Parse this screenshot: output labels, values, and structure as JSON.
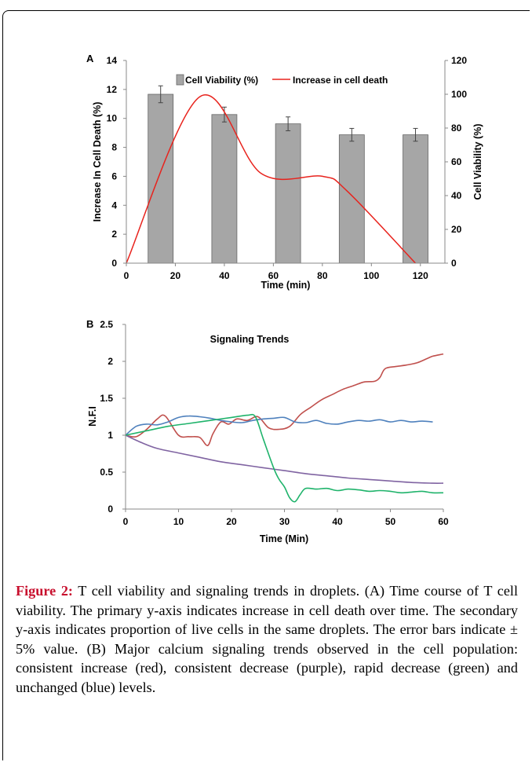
{
  "charts": [
    {
      "panel_label": "A",
      "chart_data": {
        "type": "bar",
        "xlabel": "Time (min)",
        "ylabel": "Increase In Cell Death (%)",
        "y2label": "Cell Viability (%)",
        "xlim": [
          0,
          130
        ],
        "ylim": [
          0,
          14
        ],
        "y2lim": [
          0,
          120
        ],
        "x_ticks": [
          0,
          20,
          40,
          60,
          80,
          100,
          120
        ],
        "y_ticks": [
          0,
          2,
          4,
          6,
          8,
          10,
          12,
          14
        ],
        "y2_ticks": [
          0,
          20,
          40,
          60,
          80,
          100,
          120
        ],
        "legend": {
          "position": "top"
        },
        "series": [
          {
            "name": "Cell Viability (%)",
            "kind": "bar",
            "axis": "y2",
            "color": "#a6a6a6",
            "x": [
              14,
              40,
              66,
              92,
              118
            ],
            "values": [
              100,
              88,
              82.5,
              76,
              76
            ],
            "error": [
              5,
              4.4,
              4.1,
              3.8,
              3.8
            ]
          },
          {
            "name": "Increase in cell death",
            "kind": "line",
            "axis": "y",
            "color": "#e8231d",
            "x": [
              0,
              30,
              55,
              80,
              90,
              118
            ],
            "values": [
              0,
              11.5,
              6.2,
              6,
              5,
              0
            ]
          }
        ]
      }
    },
    {
      "panel_label": "B",
      "chart_data": {
        "type": "line",
        "title": "Signaling Trends",
        "xlabel": "Time (Min)",
        "ylabel": "N.F.I",
        "xlim": [
          0,
          60
        ],
        "ylim": [
          0,
          2.5
        ],
        "x_ticks": [
          0,
          10,
          20,
          30,
          40,
          50,
          60
        ],
        "y_ticks": [
          0,
          0.5,
          1,
          1.5,
          2,
          2.5
        ],
        "y_tick_labels": [
          "0",
          "0.5",
          "1",
          "1.5",
          "2",
          "2.5"
        ],
        "series": [
          {
            "color": "#c0504d",
            "x": [
              0,
              2,
              4,
              6,
              7.5,
              10,
              12,
              14,
              15.5,
              16.5,
              18,
              19.5,
              21,
              23,
              25,
              27,
              29,
              31,
              33,
              35,
              37,
              39,
              41,
              43,
              45,
              47,
              48,
              49,
              51,
              53,
              55,
              57,
              58,
              60
            ],
            "values": [
              1,
              0.98,
              1.08,
              1.22,
              1.26,
              1.0,
              0.98,
              0.97,
              0.86,
              1.02,
              1.18,
              1.15,
              1.22,
              1.2,
              1.25,
              1.1,
              1.08,
              1.12,
              1.28,
              1.38,
              1.48,
              1.55,
              1.62,
              1.67,
              1.72,
              1.73,
              1.78,
              1.9,
              1.93,
              1.95,
              1.98,
              2.04,
              2.07,
              2.1
            ]
          },
          {
            "color": "#4f81bd",
            "x": [
              0,
              2,
              4,
              6,
              8,
              10,
              12,
              14,
              16,
              18,
              20,
              22,
              24,
              26,
              28,
              30,
              32,
              34,
              36,
              38,
              40,
              42,
              44,
              46,
              48,
              50,
              52,
              54,
              56,
              58
            ],
            "values": [
              1,
              1.12,
              1.15,
              1.14,
              1.18,
              1.24,
              1.26,
              1.25,
              1.23,
              1.2,
              1.18,
              1.17,
              1.2,
              1.22,
              1.23,
              1.24,
              1.18,
              1.17,
              1.2,
              1.16,
              1.15,
              1.18,
              1.2,
              1.19,
              1.21,
              1.18,
              1.2,
              1.18,
              1.19,
              1.18
            ]
          },
          {
            "color": "#8064a2",
            "x": [
              0,
              3,
              6,
              10,
              14,
              18,
              22,
              26,
              30,
              34,
              38,
              42,
              46,
              50,
              54,
              58,
              60
            ],
            "values": [
              1,
              0.9,
              0.82,
              0.76,
              0.7,
              0.64,
              0.6,
              0.56,
              0.52,
              0.48,
              0.45,
              0.42,
              0.4,
              0.38,
              0.36,
              0.35,
              0.35
            ]
          },
          {
            "color": "#1fb36b",
            "x": [
              0,
              4,
              8,
              12,
              16,
              20,
              23,
              24.5,
              26,
              28,
              29,
              30,
              31,
              32,
              33,
              34,
              36,
              38,
              40,
              42,
              44,
              46,
              48,
              50,
              52,
              54,
              56,
              58,
              60
            ],
            "values": [
              1,
              1.06,
              1.12,
              1.16,
              1.2,
              1.24,
              1.27,
              1.25,
              0.95,
              0.55,
              0.4,
              0.3,
              0.15,
              0.1,
              0.2,
              0.28,
              0.27,
              0.28,
              0.25,
              0.27,
              0.26,
              0.24,
              0.25,
              0.24,
              0.22,
              0.23,
              0.24,
              0.22,
              0.22
            ]
          }
        ]
      }
    }
  ],
  "caption": {
    "label": "Figure 2:",
    "text": " T cell viability and signaling trends in droplets. (A) Time course of T cell viability. The primary y-axis indicates increase in cell death over time. The secondary y-axis indicates proportion of live cells in the same droplets. The error bars indicate ± 5% value. (B) Major calcium signaling trends observed in the cell population: consistent increase (red), consistent decrease (purple), rapid decrease (green) and unchanged (blue) levels."
  }
}
